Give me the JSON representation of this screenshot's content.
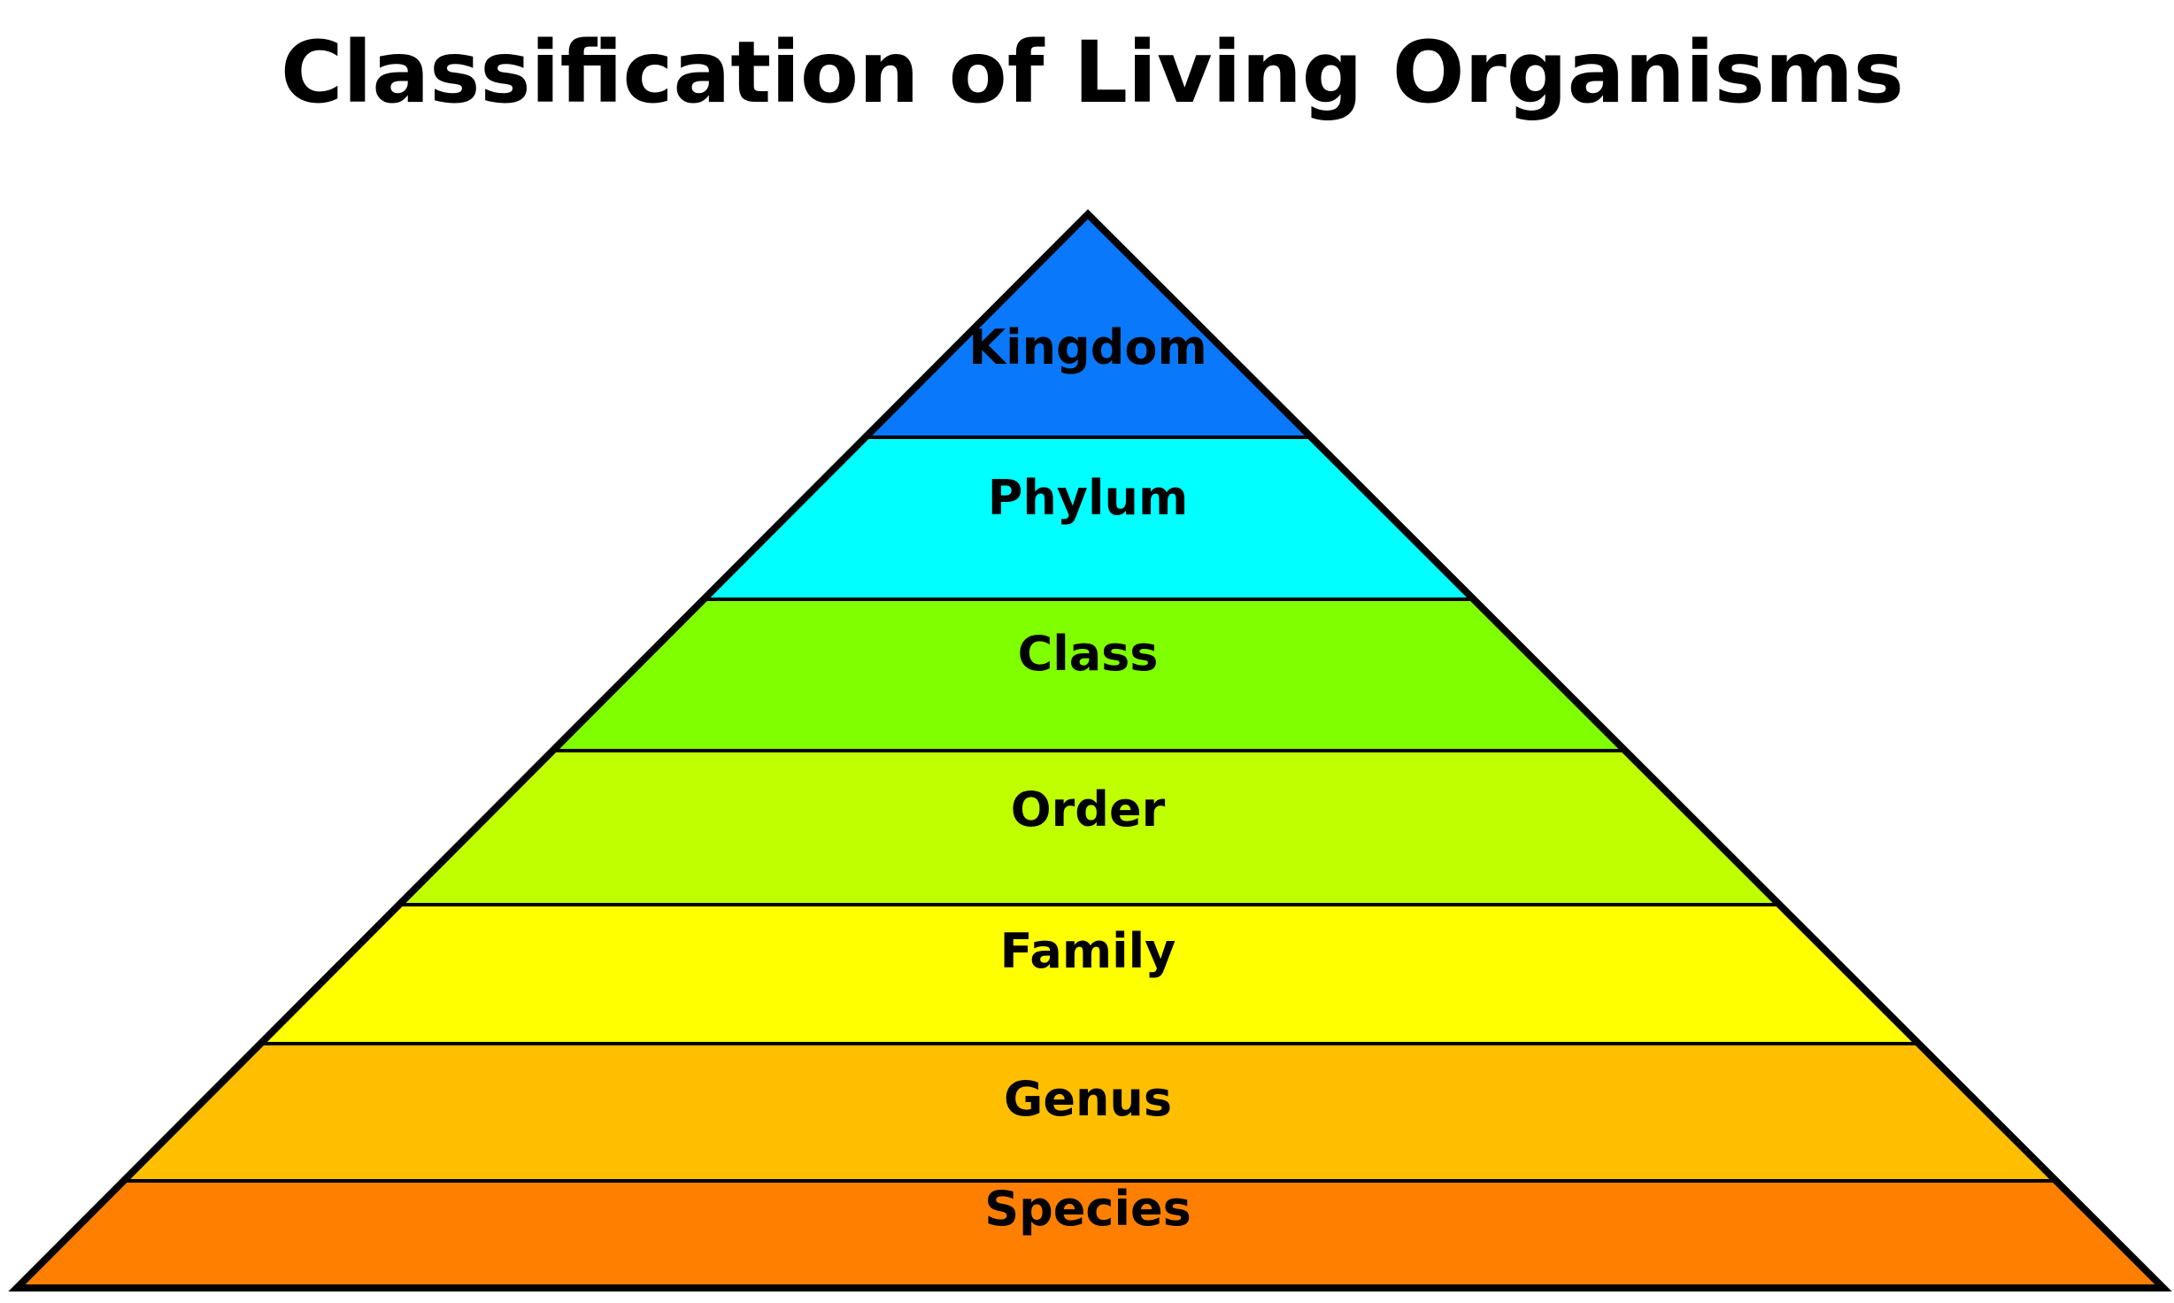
{
  "title": "Classification of Living Organisms",
  "levels": [
    {
      "name": "Kingdom",
      "color": "#0a78fa"
    },
    {
      "name": "Phylum",
      "color": "#00ffff"
    },
    {
      "name": "Class",
      "color": "#80ff00"
    },
    {
      "name": "Order",
      "color": "#c0ff00"
    },
    {
      "name": "Family",
      "color": "#ffff00"
    },
    {
      "name": "Genus",
      "color": "#ffbf00"
    },
    {
      "name": "Species",
      "color": "#ff8000"
    }
  ]
}
